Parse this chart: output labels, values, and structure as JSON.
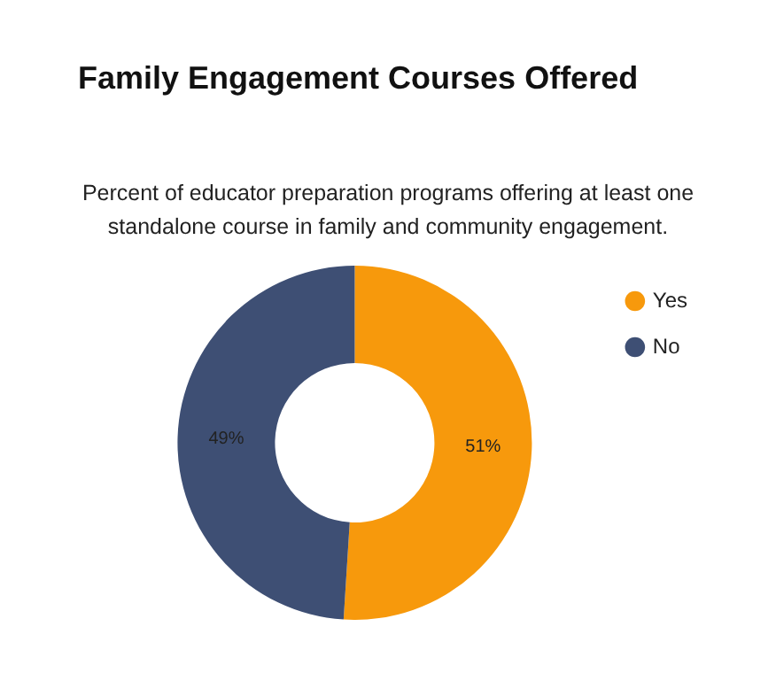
{
  "chart_data": {
    "type": "donut",
    "title": "Family Engagement Courses Offered",
    "subtitle": "Percent of educator preparation programs offering at least one standalone course in family and community engagement.",
    "categories": [
      "Yes",
      "No"
    ],
    "values": [
      51,
      49
    ],
    "colors": [
      "#f7990c",
      "#3e4f74"
    ],
    "value_labels": [
      "51%",
      "49%"
    ],
    "legend": "right"
  }
}
